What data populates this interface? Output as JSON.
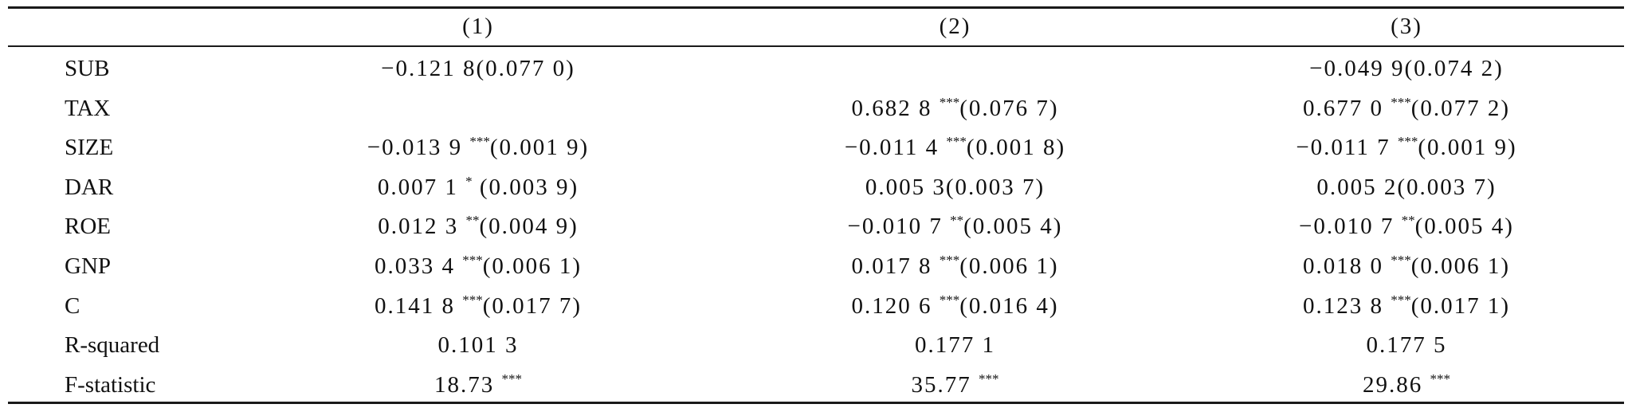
{
  "columns": [
    "(1)",
    "(2)",
    "(3)"
  ],
  "rows": [
    {
      "label": "SUB",
      "cells": [
        {
          "v": "−0.121 8",
          "s": "",
          "se": "(0.077 0)"
        },
        {
          "v": "",
          "s": "",
          "se": ""
        },
        {
          "v": "−0.049 9",
          "s": "",
          "se": "(0.074 2)"
        }
      ]
    },
    {
      "label": "TAX",
      "cells": [
        {
          "v": "",
          "s": "",
          "se": ""
        },
        {
          "v": "0.682 8 ",
          "s": "***",
          "se": "(0.076 7)"
        },
        {
          "v": "0.677 0 ",
          "s": "***",
          "se": "(0.077 2)"
        }
      ]
    },
    {
      "label": "SIZE",
      "cells": [
        {
          "v": "−0.013 9 ",
          "s": "***",
          "se": "(0.001 9)"
        },
        {
          "v": "−0.011 4 ",
          "s": "***",
          "se": "(0.001 8)"
        },
        {
          "v": "−0.011 7 ",
          "s": "***",
          "se": "(0.001 9)"
        }
      ]
    },
    {
      "label": "DAR",
      "cells": [
        {
          "v": "0.007 1 ",
          "s": "*",
          "se": " (0.003 9)"
        },
        {
          "v": "0.005 3",
          "s": "",
          "se": "(0.003 7)"
        },
        {
          "v": "0.005 2",
          "s": "",
          "se": "(0.003 7)"
        }
      ]
    },
    {
      "label": "ROE",
      "cells": [
        {
          "v": "0.012 3 ",
          "s": "**",
          "se": "(0.004 9)"
        },
        {
          "v": "−0.010 7 ",
          "s": "**",
          "se": "(0.005 4)"
        },
        {
          "v": "−0.010 7 ",
          "s": "**",
          "se": "(0.005 4)"
        }
      ]
    },
    {
      "label": "GNP",
      "cells": [
        {
          "v": "0.033 4 ",
          "s": "***",
          "se": "(0.006 1)"
        },
        {
          "v": "0.017 8 ",
          "s": "***",
          "se": "(0.006 1)"
        },
        {
          "v": "0.018 0 ",
          "s": "***",
          "se": "(0.006 1)"
        }
      ]
    },
    {
      "label": "C",
      "cells": [
        {
          "v": "0.141 8 ",
          "s": "***",
          "se": "(0.017 7)"
        },
        {
          "v": "0.120 6 ",
          "s": "***",
          "se": "(0.016 4)"
        },
        {
          "v": "0.123 8 ",
          "s": "***",
          "se": "(0.017 1)"
        }
      ]
    },
    {
      "label": "R-squared",
      "cells": [
        {
          "v": "0.101 3",
          "s": "",
          "se": ""
        },
        {
          "v": "0.177 1",
          "s": "",
          "se": ""
        },
        {
          "v": "0.177 5",
          "s": "",
          "se": ""
        }
      ]
    },
    {
      "label": "F-statistic",
      "cells": [
        {
          "v": "18.73 ",
          "s": "***",
          "se": ""
        },
        {
          "v": "35.77 ",
          "s": "***",
          "se": ""
        },
        {
          "v": "29.86 ",
          "s": "***",
          "se": ""
        }
      ]
    }
  ]
}
